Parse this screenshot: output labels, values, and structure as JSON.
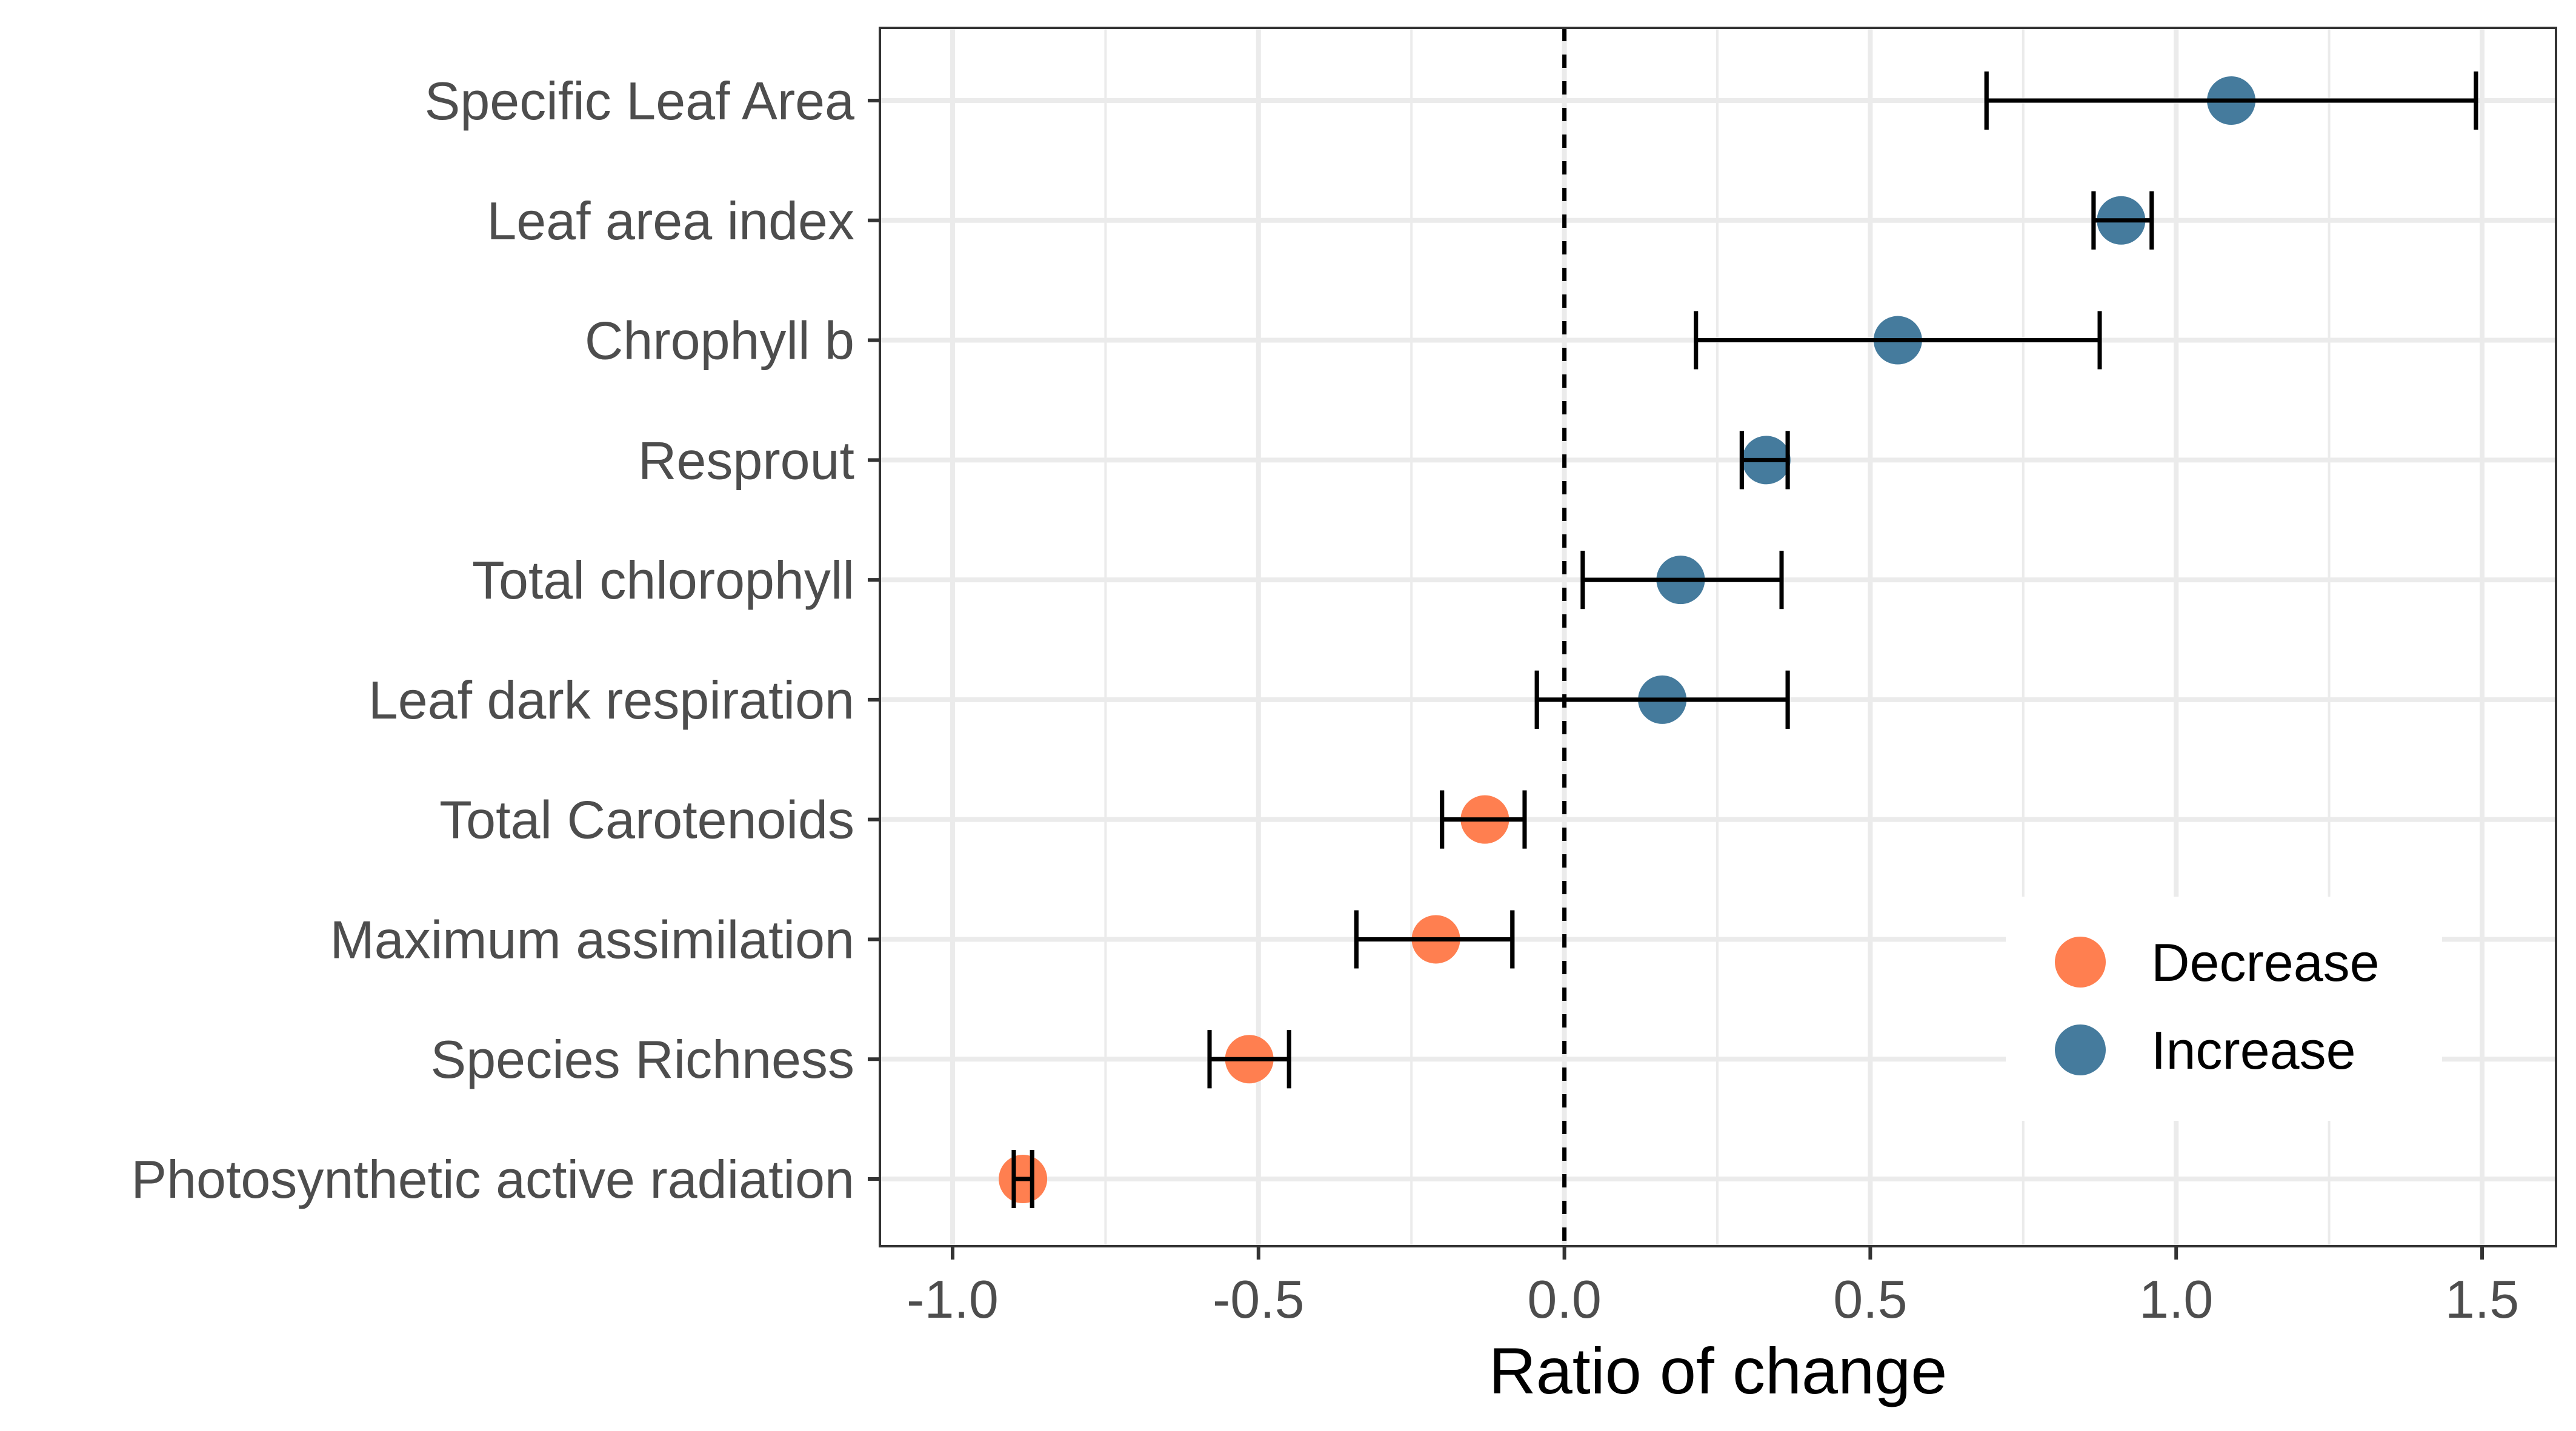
{
  "chart_data": {
    "type": "scatter",
    "subtype": "forest-plot-with-error-bars",
    "title": "",
    "xlabel": "Ratio of change",
    "ylabel": "",
    "xlim": [
      -1.12,
      1.62
    ],
    "xticks": [
      -1.0,
      -0.5,
      0.0,
      0.5,
      1.0,
      1.5
    ],
    "xtick_labels": [
      "-1.0",
      "-0.5",
      "0.0",
      "0.5",
      "1.0",
      "1.5"
    ],
    "reference_line": {
      "x": 0.0,
      "style": "dashed"
    },
    "grid": true,
    "legend": {
      "position": "bottom-right-inside",
      "entries": [
        {
          "label": "Decrease",
          "color": "#FF7F50"
        },
        {
          "label": "Increase",
          "color": "#457B9D"
        }
      ]
    },
    "categories": [
      "Specific Leaf Area",
      "Leaf area index",
      "Chrophyll b",
      "Resprout",
      "Total chlorophyll",
      "Leaf dark respiration",
      "Total Carotenoids",
      "Maximum assimilation",
      "Species Richness",
      "Photosynthetic active radiation"
    ],
    "points": [
      {
        "category": "Specific Leaf Area",
        "value": 1.09,
        "lower": 0.69,
        "upper": 1.49,
        "group": "Increase"
      },
      {
        "category": "Leaf area index",
        "value": 0.91,
        "lower": 0.865,
        "upper": 0.96,
        "group": "Increase"
      },
      {
        "category": "Chrophyll b",
        "value": 0.545,
        "lower": 0.215,
        "upper": 0.875,
        "group": "Increase"
      },
      {
        "category": "Resprout",
        "value": 0.33,
        "lower": 0.29,
        "upper": 0.365,
        "group": "Increase"
      },
      {
        "category": "Total chlorophyll",
        "value": 0.19,
        "lower": 0.03,
        "upper": 0.355,
        "group": "Increase"
      },
      {
        "category": "Leaf dark respiration",
        "value": 0.16,
        "lower": -0.045,
        "upper": 0.365,
        "group": "Increase"
      },
      {
        "category": "Total Carotenoids",
        "value": -0.13,
        "lower": -0.2,
        "upper": -0.065,
        "group": "Decrease"
      },
      {
        "category": "Maximum assimilation",
        "value": -0.21,
        "lower": -0.34,
        "upper": -0.085,
        "group": "Decrease"
      },
      {
        "category": "Species Richness",
        "value": -0.515,
        "lower": -0.58,
        "upper": -0.45,
        "group": "Decrease"
      },
      {
        "category": "Photosynthetic active radiation",
        "value": -0.885,
        "lower": -0.9,
        "upper": -0.87,
        "group": "Decrease"
      }
    ]
  }
}
